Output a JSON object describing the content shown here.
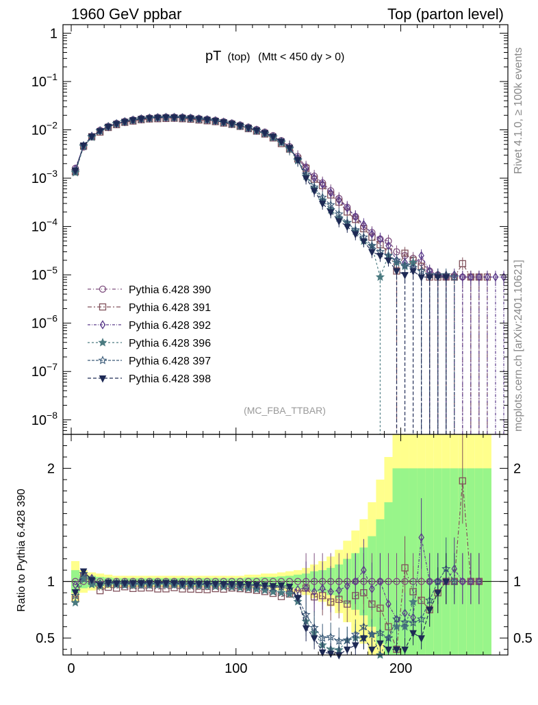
{
  "header": {
    "left": "1960 GeV ppbar",
    "right": "Top (parton level)"
  },
  "side_labels": {
    "version": "Rivet 4.1.0, ≥ 100k events",
    "site": "mcplots.cern.ch [arXiv:2401.10621]"
  },
  "chart_data": {
    "type": "line",
    "title_main": "pT",
    "title_sub": "(top)",
    "title_cut": "(Mtt < 450 dy > 0)",
    "analysis_label": "(MC_FBA_TTBAR)",
    "ylabel_ratio": "Ratio to Pythia 6.428 390",
    "xlabel": "",
    "xlim": [
      -5,
      265
    ],
    "ylim_main": [
      5e-09,
      1.5
    ],
    "ylim_ratio": [
      0.35,
      2.3
    ],
    "x_ticks": [
      0,
      100,
      200
    ],
    "x_tick_labels": [
      "0",
      "100",
      "200"
    ],
    "y_main_ticks": [
      1,
      0.1,
      0.01,
      0.001,
      0.0001,
      1e-05,
      1e-06,
      1e-07,
      1e-08
    ],
    "y_main_tick_labels": [
      {
        "base": "1",
        "exp": ""
      },
      {
        "base": "10",
        "exp": "−1"
      },
      {
        "base": "10",
        "exp": "−2"
      },
      {
        "base": "10",
        "exp": "−3"
      },
      {
        "base": "10",
        "exp": "−4"
      },
      {
        "base": "10",
        "exp": "−5"
      },
      {
        "base": "10",
        "exp": "−6"
      },
      {
        "base": "10",
        "exp": "−7"
      },
      {
        "base": "10",
        "exp": "−8"
      }
    ],
    "y_ratio_ticks": [
      0.5,
      1,
      2
    ],
    "y_ratio_tick_labels": [
      "0.5",
      "1",
      "2"
    ],
    "x": [
      2.5,
      7.5,
      12.5,
      17.5,
      22.5,
      27.5,
      32.5,
      37.5,
      42.5,
      47.5,
      52.5,
      57.5,
      62.5,
      67.5,
      72.5,
      77.5,
      82.5,
      87.5,
      92.5,
      97.5,
      102.5,
      107.5,
      112.5,
      117.5,
      122.5,
      127.5,
      132.5,
      137.5,
      142.5,
      147.5,
      152.5,
      157.5,
      162.5,
      167.5,
      172.5,
      177.5,
      182.5,
      187.5,
      192.5,
      197.5,
      202.5,
      207.5,
      212.5,
      217.5,
      222.5,
      227.5,
      232.5,
      237.5,
      242.5,
      247.5,
      252.5,
      257.5,
      262.5
    ],
    "series": [
      {
        "name": "Pythia 6.428 390",
        "color": "#7e4e7e",
        "marker": "circle-open",
        "dash": "5 3 1 3",
        "values": [
          0.0016,
          0.0044,
          0.0072,
          0.0098,
          0.0118,
          0.0136,
          0.015,
          0.0162,
          0.0172,
          0.0178,
          0.0182,
          0.0184,
          0.0184,
          0.0182,
          0.0178,
          0.0172,
          0.0166,
          0.0158,
          0.0148,
          0.0138,
          0.0126,
          0.0114,
          0.0102,
          0.009,
          0.0076,
          0.006,
          0.0045,
          0.0028,
          0.0017,
          0.0011,
          0.0008,
          0.00055,
          0.00038,
          0.00025,
          0.00016,
          0.0001,
          7.5e-05,
          5.5e-05,
          5e-05,
          3e-05,
          2.5e-05,
          2.2e-05,
          1.8e-05,
          1.2e-05,
          1e-05,
          9e-06,
          9e-06,
          9e-06,
          9e-06,
          9e-06,
          null,
          null,
          null
        ]
      },
      {
        "name": "Pythia 6.428 391",
        "color": "#80505a",
        "marker": "square-open",
        "dash": "6 3 2 3",
        "values": [
          0.00135,
          0.0046,
          0.0072,
          0.009,
          0.0112,
          0.0128,
          0.0143,
          0.0152,
          0.0162,
          0.0168,
          0.017,
          0.0172,
          0.0174,
          0.017,
          0.0166,
          0.016,
          0.0154,
          0.0148,
          0.0138,
          0.013,
          0.0118,
          0.0106,
          0.0094,
          0.0082,
          0.0068,
          0.0052,
          0.004,
          0.0025,
          0.0016,
          0.00095,
          0.0007,
          0.00045,
          0.00032,
          0.0002,
          0.00014,
          9e-05,
          6e-05,
          4.2e-05,
          3e-05,
          1.2e-05,
          2.8e-05,
          2e-05,
          1.5e-05,
          9e-06,
          9e-06,
          9e-06,
          9e-06,
          1.7e-05,
          9e-06,
          9e-06,
          9e-06,
          null,
          null
        ]
      },
      {
        "name": "Pythia 6.428 392",
        "color": "#5a3a8a",
        "marker": "diamond-open",
        "dash": "4 2 1 2",
        "values": [
          0.00155,
          0.0047,
          0.0074,
          0.0096,
          0.0116,
          0.0134,
          0.0147,
          0.0159,
          0.0168,
          0.0174,
          0.0178,
          0.018,
          0.018,
          0.0178,
          0.0174,
          0.0168,
          0.0162,
          0.0154,
          0.0144,
          0.0134,
          0.0122,
          0.011,
          0.0098,
          0.0086,
          0.0072,
          0.0057,
          0.0042,
          0.0026,
          0.0016,
          0.001,
          0.00075,
          0.0005,
          0.00035,
          0.00024,
          0.00016,
          0.00011,
          7e-05,
          5.5e-05,
          4e-05,
          2e-05,
          1.8e-05,
          1.5e-05,
          2.5e-05,
          1.2e-05,
          1e-05,
          9e-06,
          1e-05,
          9e-06,
          9e-06,
          9e-06,
          9e-06,
          9e-06,
          9e-06
        ]
      },
      {
        "name": "Pythia 6.428 396",
        "color": "#4a7a80",
        "marker": "star-filled",
        "dash": "3 3",
        "values": [
          0.0013,
          0.0045,
          0.007,
          0.0094,
          0.0115,
          0.0132,
          0.0145,
          0.0156,
          0.0166,
          0.0172,
          0.0176,
          0.0178,
          0.0178,
          0.0175,
          0.0171,
          0.0165,
          0.0159,
          0.0151,
          0.0141,
          0.0131,
          0.0119,
          0.0107,
          0.0095,
          0.0083,
          0.0069,
          0.0054,
          0.004,
          0.0023,
          0.0011,
          0.0006,
          0.00035,
          0.00022,
          0.00015,
          0.00012,
          8e-05,
          5e-05,
          4e-05,
          9e-06,
          2.5e-05,
          1.8e-05,
          1.5e-05,
          1.8e-05,
          null,
          null,
          null,
          null,
          null,
          null,
          null,
          null,
          null,
          null,
          null
        ]
      },
      {
        "name": "Pythia 6.428 397",
        "color": "#3a5a78",
        "marker": "star-open",
        "dash": "4 2",
        "values": [
          0.0014,
          0.0047,
          0.0073,
          0.0096,
          0.0117,
          0.0134,
          0.0148,
          0.0159,
          0.0169,
          0.0175,
          0.0179,
          0.0181,
          0.0181,
          0.0178,
          0.0174,
          0.0168,
          0.0162,
          0.0154,
          0.0144,
          0.0134,
          0.0122,
          0.011,
          0.0098,
          0.0086,
          0.0072,
          0.0057,
          0.0042,
          0.0024,
          0.0012,
          0.00065,
          0.0004,
          0.00028,
          0.00018,
          0.00012,
          8.5e-05,
          6e-05,
          4e-05,
          3e-05,
          2.5e-05,
          2e-05,
          1.6e-05,
          1.4e-05,
          1.2e-05,
          1e-05,
          1e-05,
          1e-05,
          9e-06,
          null,
          null,
          null,
          null,
          null,
          null
        ]
      },
      {
        "name": "Pythia 6.428 398",
        "color": "#1e2a55",
        "marker": "triangle-down-filled",
        "dash": "5 3",
        "values": [
          0.00145,
          0.0048,
          0.0073,
          0.0095,
          0.0117,
          0.0134,
          0.0148,
          0.016,
          0.017,
          0.0176,
          0.018,
          0.0182,
          0.0182,
          0.0179,
          0.0175,
          0.0169,
          0.0163,
          0.0155,
          0.0145,
          0.0135,
          0.0123,
          0.0111,
          0.0099,
          0.0087,
          0.0073,
          0.0058,
          0.0043,
          0.0024,
          0.001,
          0.00055,
          0.0003,
          0.0002,
          0.00013,
          0.0001,
          7e-05,
          5e-05,
          3e-05,
          2.5e-05,
          2e-05,
          1.2e-05,
          1e-05,
          1.2e-05,
          9e-06,
          9e-06,
          9e-06,
          9e-06,
          null,
          null,
          null,
          null,
          null,
          null,
          null
        ]
      }
    ],
    "ratio_band": {
      "x_edges": [
        0,
        5,
        10,
        15,
        20,
        25,
        30,
        35,
        40,
        45,
        50,
        55,
        60,
        65,
        70,
        75,
        80,
        85,
        90,
        95,
        100,
        105,
        110,
        115,
        120,
        125,
        130,
        135,
        140,
        145,
        150,
        155,
        160,
        165,
        170,
        175,
        180,
        185,
        190,
        195,
        200,
        205,
        210,
        215,
        220,
        225,
        230,
        235,
        240,
        245,
        250,
        255
      ],
      "inner": [
        0.1,
        0.06,
        0.05,
        0.04,
        0.035,
        0.03,
        0.03,
        0.03,
        0.03,
        0.03,
        0.03,
        0.03,
        0.03,
        0.03,
        0.03,
        0.03,
        0.03,
        0.03,
        0.03,
        0.03,
        0.03,
        0.035,
        0.035,
        0.04,
        0.04,
        0.045,
        0.05,
        0.06,
        0.07,
        0.09,
        0.1,
        0.12,
        0.15,
        0.2,
        0.25,
        0.3,
        0.4,
        0.55,
        0.7,
        1.0,
        1.0,
        1.0,
        1.0,
        1.0,
        1.0,
        1.0,
        1.0,
        1.0,
        1.0,
        1.0,
        1.0
      ],
      "outer": [
        0.18,
        0.1,
        0.08,
        0.07,
        0.06,
        0.05,
        0.05,
        0.05,
        0.05,
        0.05,
        0.05,
        0.05,
        0.05,
        0.05,
        0.05,
        0.05,
        0.05,
        0.05,
        0.05,
        0.05,
        0.05,
        0.06,
        0.06,
        0.07,
        0.07,
        0.08,
        0.09,
        0.1,
        0.12,
        0.15,
        0.18,
        0.22,
        0.28,
        0.36,
        0.45,
        0.55,
        0.7,
        0.9,
        1.1,
        1.4,
        1.4,
        1.4,
        1.4,
        1.4,
        1.4,
        1.4,
        1.4,
        1.4,
        1.4,
        1.4,
        1.4
      ]
    }
  }
}
